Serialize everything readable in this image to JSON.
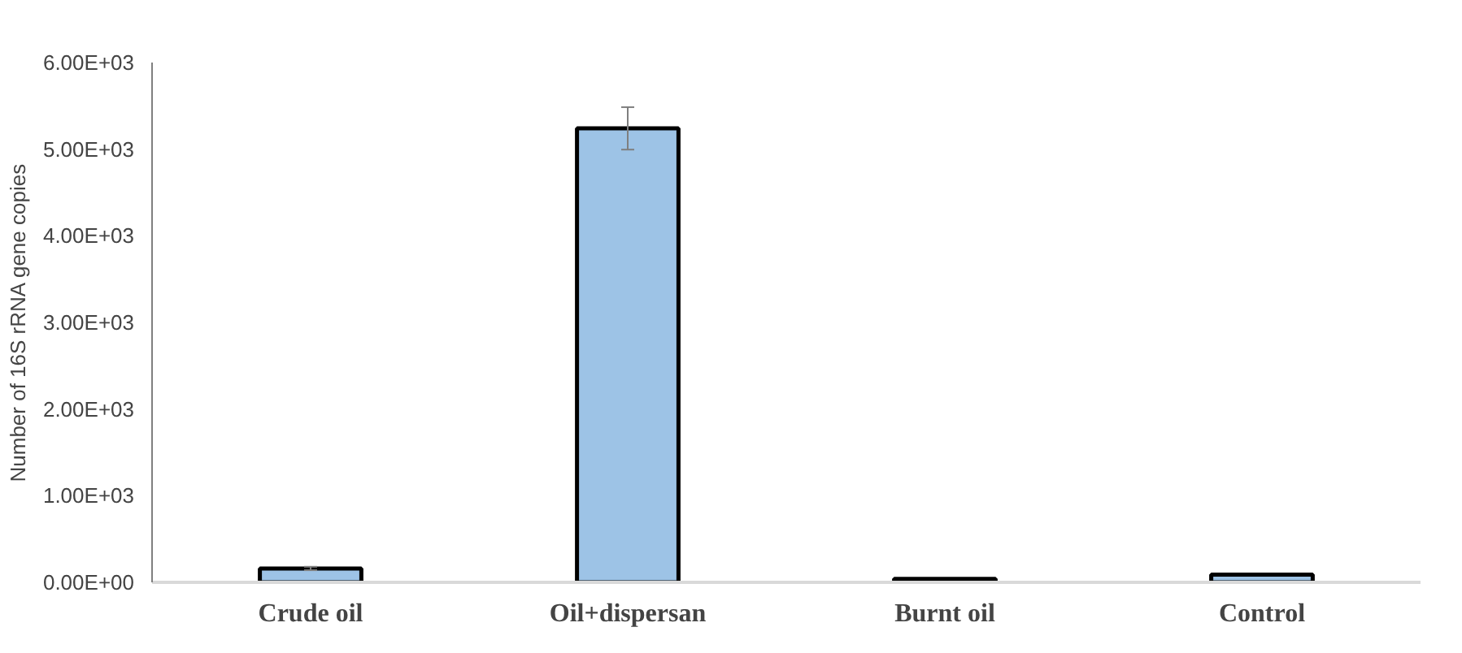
{
  "chart_data": {
    "type": "bar",
    "ylabel": "Number of 16S rRNA gene copies",
    "categories": [
      "Crude oil",
      "Oil+dispersan",
      "Burnt oil",
      "Control"
    ],
    "values": [
      160,
      5240,
      40,
      90
    ],
    "errors": [
      20,
      245,
      null,
      null
    ],
    "color": "#9dc3e6",
    "ylim": [
      0,
      6000
    ],
    "yticks": [
      {
        "value": 0,
        "label": "0.00E+00"
      },
      {
        "value": 1000,
        "label": "1.00E+03"
      },
      {
        "value": 2000,
        "label": "2.00E+03"
      },
      {
        "value": 3000,
        "label": "3.00E+03"
      },
      {
        "value": 4000,
        "label": "4.00E+03"
      },
      {
        "value": 5000,
        "label": "5.00E+03"
      },
      {
        "value": 6000,
        "label": "6.00E+03"
      }
    ],
    "grid": false
  }
}
